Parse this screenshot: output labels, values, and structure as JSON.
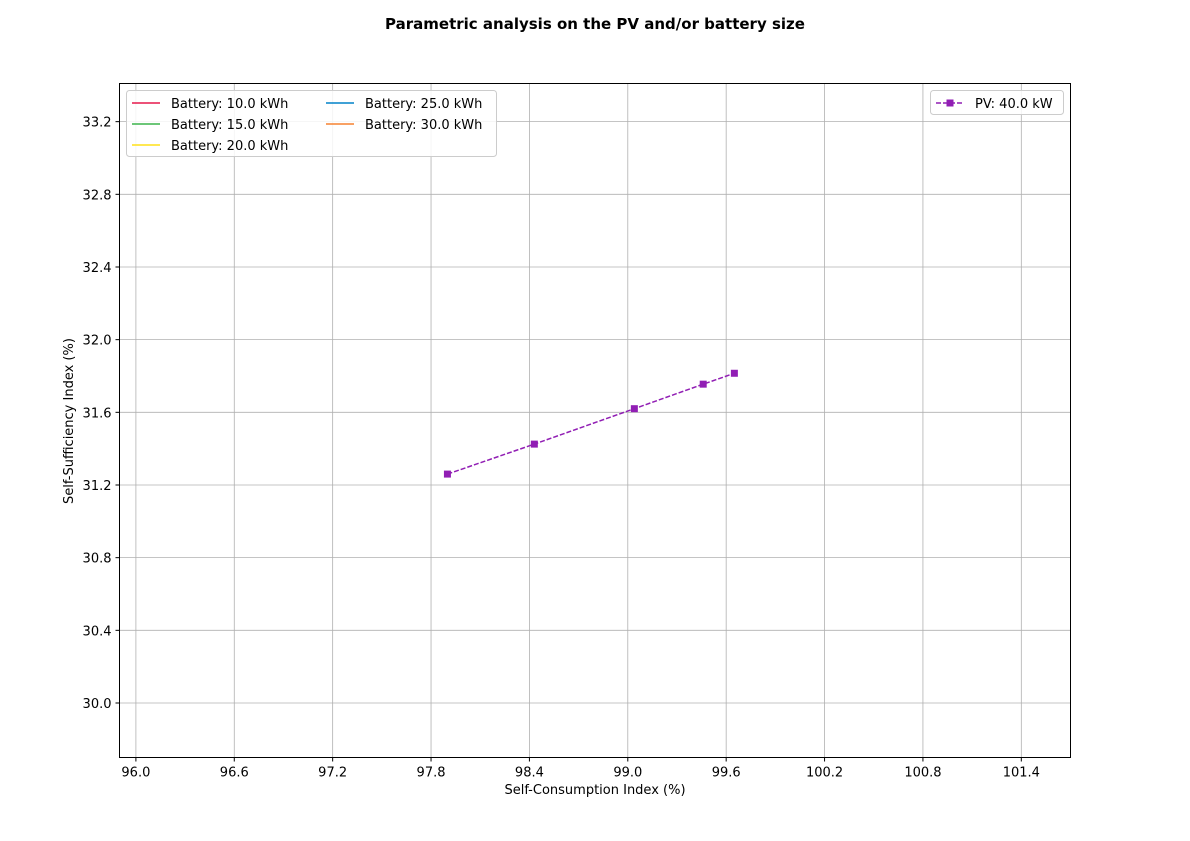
{
  "chart_data": {
    "type": "line",
    "title": "Parametric analysis on the PV and/or battery size",
    "xlabel": "Self-Consumption Index (%)",
    "ylabel": "Self-Sufficiency Index (%)",
    "xlim": [
      95.9,
      101.7
    ],
    "ylim": [
      29.7,
      33.41
    ],
    "x_ticks": [
      "96.0",
      "96.6",
      "97.2",
      "97.8",
      "98.4",
      "99.0",
      "99.6",
      "100.2",
      "100.8",
      "101.4"
    ],
    "y_ticks": [
      "30.0",
      "30.4",
      "30.8",
      "31.2",
      "31.6",
      "32.0",
      "32.4",
      "32.8",
      "33.2"
    ],
    "grid": true,
    "battery_legend": {
      "placement": "top-left",
      "entries": [
        {
          "name": "Battery: 10.0 kWh",
          "color": "#e6194b"
        },
        {
          "name": "Battery: 15.0 kWh",
          "color": "#3cb44b"
        },
        {
          "name": "Battery: 20.0 kWh",
          "color": "#ffe119"
        },
        {
          "name": "Battery: 25.0 kWh",
          "color": "#0082c8"
        },
        {
          "name": "Battery: 30.0 kWh",
          "color": "#f58231"
        }
      ]
    },
    "series": [
      {
        "name": "PV: 40.0 kW",
        "color": "#911eb4",
        "linestyle": "dashed",
        "marker": "square",
        "legend_placement": "top-right",
        "x": [
          97.9,
          98.43,
          99.04,
          99.46,
          99.65
        ],
        "y": [
          31.26,
          31.425,
          31.62,
          31.755,
          31.815
        ]
      }
    ]
  }
}
